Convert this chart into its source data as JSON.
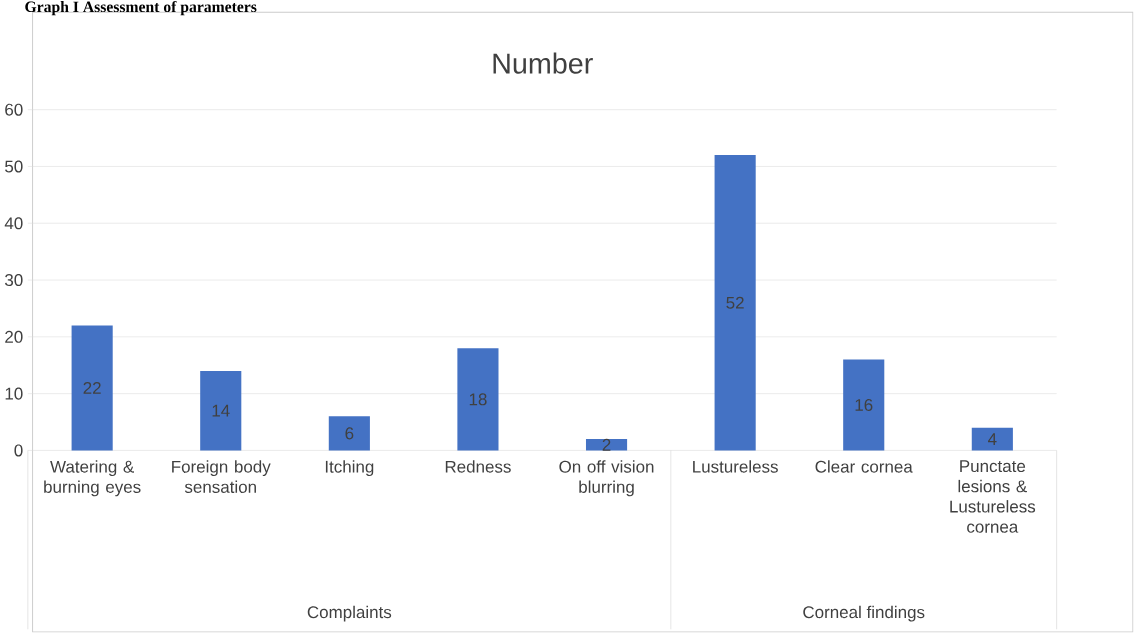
{
  "chart_data": {
    "type": "bar",
    "title": "Number",
    "categories": [
      "Watering & burning eyes",
      "Foreign body sensation",
      "Itching",
      "Redness",
      "On off vision blurring",
      "Lustureless",
      "Clear cornea",
      "Punctate lesions & Lustureless cornea"
    ],
    "values": [
      22,
      14,
      6,
      18,
      2,
      52,
      16,
      4
    ],
    "color": "#4472c4",
    "ylim": [
      0,
      60
    ],
    "yticks": [
      0,
      10,
      20,
      30,
      40,
      50,
      60
    ],
    "grid": "y",
    "data_labels": true,
    "annotations": [
      "Graph I Assessment of parameters",
      "Complaints",
      "Corneal findings"
    ]
  }
}
